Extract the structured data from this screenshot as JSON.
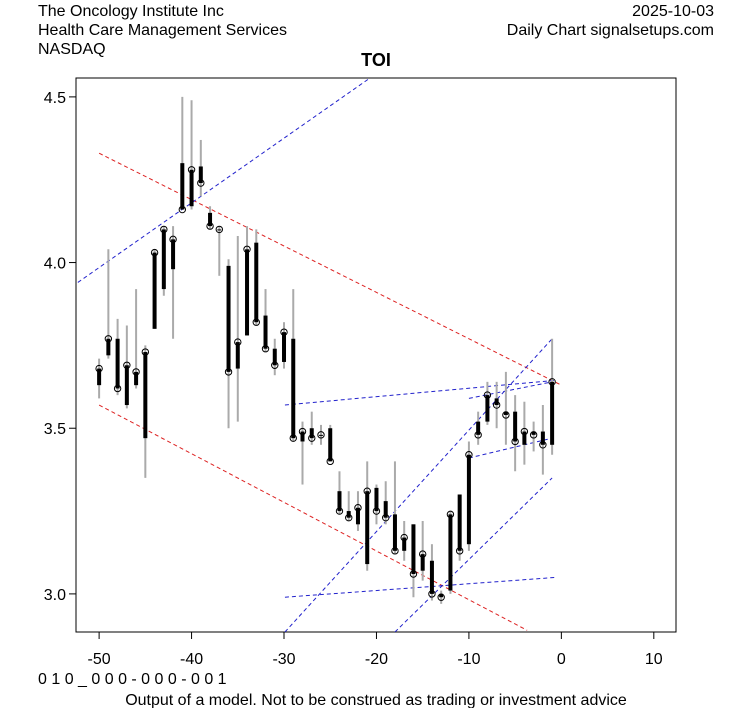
{
  "header": {
    "left": [
      "The Oncology Institute Inc",
      "Health Care Management Services",
      "NASDAQ"
    ],
    "right": [
      "2025-10-03",
      "Daily Chart signalsetups.com"
    ]
  },
  "footer": {
    "code": "0 1 0 _ 0 0 0 - 0 0 0 - 0 0 1",
    "note": "Output of a model. Not to be construed as trading or investment advice"
  },
  "chart_data": {
    "type": "ohlc",
    "title": "TOI",
    "x": [
      -50,
      -49,
      -48,
      -47,
      -46,
      -45,
      -44,
      -43,
      -42,
      -41,
      -40,
      -39,
      -38,
      -37,
      -36,
      -35,
      -34,
      -33,
      -32,
      -31,
      -30,
      -29,
      -28,
      -27,
      -26,
      -25,
      -24,
      -23,
      -22,
      -21,
      -20,
      -19,
      -18,
      -17,
      -16,
      -15,
      -14,
      -13,
      -12,
      -11,
      -10,
      -9,
      -8,
      -7,
      -6,
      -5,
      -4,
      -3,
      -2,
      -1
    ],
    "open": [
      3.63,
      3.72,
      3.77,
      3.57,
      3.63,
      3.47,
      3.8,
      3.92,
      3.98,
      4.3,
      4.17,
      4.29,
      4.15,
      4.1,
      3.99,
      3.68,
      3.78,
      4.06,
      3.84,
      3.74,
      3.7,
      3.77,
      3.46,
      3.5,
      3.48,
      3.5,
      3.31,
      3.25,
      3.21,
      3.09,
      3.32,
      3.28,
      3.24,
      3.13,
      3.21,
      3.07,
      3.1,
      3.0,
      3.01,
      3.3,
      3.15,
      3.52,
      3.52,
      3.59,
      3.55,
      3.55,
      3.45,
      3.49,
      3.49,
      3.45
    ],
    "high": [
      3.71,
      4.04,
      3.83,
      3.81,
      3.92,
      3.75,
      4.04,
      4.11,
      4.11,
      4.5,
      4.49,
      4.37,
      4.17,
      4.11,
      4.01,
      4.08,
      4.11,
      4.1,
      3.92,
      3.77,
      3.82,
      3.92,
      3.52,
      3.55,
      3.51,
      3.51,
      3.37,
      3.31,
      3.31,
      3.4,
      3.33,
      3.34,
      3.4,
      3.22,
      3.21,
      3.22,
      3.15,
      3.01,
      3.25,
      3.3,
      3.46,
      3.55,
      3.64,
      3.64,
      3.67,
      3.6,
      3.58,
      3.52,
      3.57,
      3.77
    ],
    "low": [
      3.59,
      3.71,
      3.6,
      3.56,
      3.62,
      3.35,
      3.8,
      3.9,
      3.77,
      4.16,
      4.16,
      4.2,
      4.1,
      3.96,
      3.5,
      3.52,
      3.78,
      3.81,
      3.73,
      3.66,
      3.68,
      3.46,
      3.33,
      3.45,
      3.45,
      3.4,
      3.24,
      3.22,
      3.19,
      3.07,
      3.21,
      3.21,
      3.12,
      3.1,
      2.99,
      3.04,
      2.98,
      2.97,
      3.0,
      3.1,
      3.13,
      3.45,
      3.51,
      3.5,
      3.45,
      3.37,
      3.39,
      3.43,
      3.36,
      3.42
    ],
    "close": [
      3.68,
      3.77,
      3.62,
      3.69,
      3.67,
      3.73,
      4.03,
      4.1,
      4.07,
      4.16,
      4.28,
      4.24,
      4.11,
      4.1,
      3.67,
      3.76,
      4.04,
      3.82,
      3.74,
      3.69,
      3.79,
      3.47,
      3.49,
      3.47,
      3.48,
      3.4,
      3.25,
      3.23,
      3.26,
      3.31,
      3.25,
      3.23,
      3.13,
      3.17,
      3.06,
      3.12,
      3.0,
      2.99,
      3.24,
      3.13,
      3.42,
      3.48,
      3.6,
      3.57,
      3.54,
      3.46,
      3.49,
      3.48,
      3.45,
      3.64
    ],
    "lines": [
      {
        "color": "#dd2222",
        "x": [
          -50,
          0
        ],
        "y": [
          4.33,
          3.63
        ]
      },
      {
        "color": "#dd2222",
        "x": [
          -50,
          -3.7
        ],
        "y": [
          3.57,
          2.89
        ]
      },
      {
        "color": "#2222cc",
        "x": [
          -52.3,
          -20.7
        ],
        "y": [
          3.94,
          4.557
        ]
      },
      {
        "color": "#2222cc",
        "x": [
          -29.9,
          -0.5
        ],
        "y": [
          3.57,
          3.645
        ]
      },
      {
        "color": "#2222cc",
        "x": [
          -29.9,
          -0.5
        ],
        "y": [
          2.99,
          3.05
        ]
      },
      {
        "color": "#2222cc",
        "x": [
          -29.9,
          -1
        ],
        "y": [
          2.885,
          3.77
        ]
      },
      {
        "color": "#2222cc",
        "x": [
          -18,
          -1
        ],
        "y": [
          2.885,
          3.35
        ]
      },
      {
        "color": "#2222cc",
        "x": [
          -10,
          -1
        ],
        "y": [
          3.41,
          3.47
        ]
      },
      {
        "color": "#2222cc",
        "x": [
          -10,
          -1
        ],
        "y": [
          3.59,
          3.64
        ]
      }
    ],
    "xlim": [
      -52.5,
      12.4
    ],
    "ylim": [
      2.885,
      4.557
    ],
    "xticks": [
      -50,
      -40,
      -30,
      -20,
      -10,
      0,
      10
    ],
    "yticks": [
      {
        "value": 3,
        "label": "3.0"
      },
      3.5,
      {
        "value": 4,
        "label": "4.0"
      },
      4.5
    ]
  }
}
